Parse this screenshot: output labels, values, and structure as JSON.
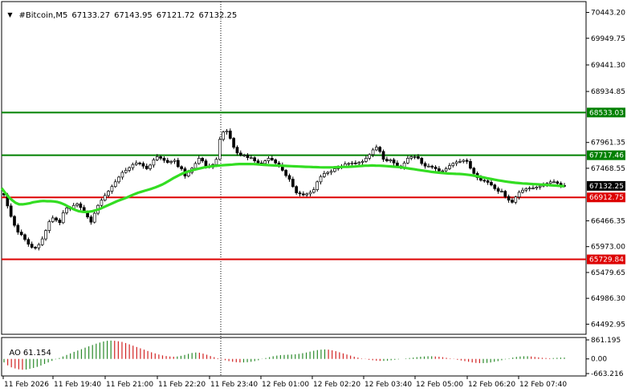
{
  "header": {
    "symbol": "#Bitcoin,M5",
    "open": "67133.27",
    "high": "67143.95",
    "low": "67121.72",
    "close": "67132.25"
  },
  "ao": {
    "name": "AO",
    "value": "61.154"
  },
  "colors": {
    "background": "#ffffff",
    "candles": "#000000",
    "moving_average": "#33dd22",
    "support_resistance_green": "#008000",
    "support_resistance_red": "#dd0000",
    "ao_up": "#2a8a2a",
    "ao_down": "#d22222",
    "current_price_box": "#000000"
  },
  "chart_data": [
    {
      "type": "candlestick",
      "title": "",
      "xlabel": "",
      "ylabel": "",
      "ylim": [
        64300,
        70650
      ],
      "y_ticks": [
        "70443.20",
        "69949.75",
        "69441.30",
        "68934.85",
        "67961.35",
        "67468.55",
        "66466.35",
        "65973.00",
        "65479.65",
        "64986.30",
        "64492.95"
      ],
      "x_ticks": [
        "11 Feb 2026",
        "11 Feb 19:40",
        "11 Feb 21:00",
        "11 Feb 22:20",
        "11 Feb 23:40",
        "12 Feb 01:00",
        "12 Feb 02:20",
        "12 Feb 03:40",
        "12 Feb 05:00",
        "12 Feb 06:20",
        "12 Feb 07:40"
      ],
      "grid": false,
      "horizontal_lines": [
        {
          "value": 68533.03,
          "label": "68533.03",
          "color": "#008000"
        },
        {
          "value": 67717.46,
          "label": "67717.46",
          "color": "#008000"
        },
        {
          "value": 66912.75,
          "label": "66912.75",
          "color": "#dd0000"
        },
        {
          "value": 65729.84,
          "label": "65729.84",
          "color": "#dd0000"
        }
      ],
      "current_price": {
        "value": 67132.25,
        "label": "67132.25"
      },
      "series": [
        {
          "kind": "close",
          "values": [
            66960,
            66750,
            66550,
            66380,
            66250,
            66200,
            66110,
            66020,
            65960,
            65950,
            66010,
            66120,
            66280,
            66450,
            66520,
            66480,
            66430,
            66620,
            66710,
            66700,
            66760,
            66790,
            66720,
            66640,
            66540,
            66440,
            66610,
            66760,
            66860,
            66950,
            67030,
            67120,
            67210,
            67300,
            67390,
            67430,
            67480,
            67540,
            67570,
            67560,
            67510,
            67460,
            67530,
            67630,
            67690,
            67660,
            67620,
            67580,
            67600,
            67620,
            67500,
            67460,
            67320,
            67390,
            67470,
            67560,
            67660,
            67610,
            67510,
            67490,
            67540,
            67640,
            68020,
            68160,
            68180,
            68040,
            67870,
            67760,
            67720,
            67720,
            67670,
            67670,
            67610,
            67570,
            67560,
            67610,
            67660,
            67630,
            67570,
            67530,
            67430,
            67330,
            67260,
            67120,
            67000,
            66980,
            66960,
            66980,
            67010,
            67060,
            67210,
            67310,
            67370,
            67390,
            67410,
            67460,
            67500,
            67510,
            67550,
            67560,
            67570,
            67560,
            67580,
            67600,
            67660,
            67730,
            67820,
            67870,
            67790,
            67640,
            67610,
            67630,
            67570,
            67510,
            67490,
            67570,
            67660,
            67690,
            67690,
            67660,
            67560,
            67510,
            67510,
            67490,
            67460,
            67420,
            67420,
            67460,
            67520,
            67560,
            67590,
            67600,
            67620,
            67600,
            67470,
            67370,
            67290,
            67240,
            67230,
            67200,
            67150,
            67080,
            67030,
            67030,
            66930,
            66860,
            66820,
            66920,
            67010,
            67050,
            67080,
            67090,
            67090,
            67110,
            67130,
            67150,
            67180,
            67210,
            67210,
            67180,
            67140,
            67130
          ]
        },
        {
          "kind": "moving_average",
          "values": [
            67090,
            67000,
            66920,
            66860,
            66810,
            66780,
            66780,
            66790,
            66800,
            66820,
            66830,
            66840,
            66845,
            66840,
            66840,
            66835,
            66825,
            66805,
            66775,
            66740,
            66705,
            66675,
            66650,
            66640,
            66635,
            66640,
            66650,
            66670,
            66690,
            66720,
            66750,
            66780,
            66810,
            66840,
            66865,
            66890,
            66915,
            66945,
            66975,
            67000,
            67020,
            67040,
            67060,
            67080,
            67105,
            67130,
            67160,
            67195,
            67235,
            67275,
            67310,
            67345,
            67375,
            67400,
            67420,
            67440,
            67455,
            67470,
            67485,
            67495,
            67505,
            67515,
            67520,
            67525,
            67530,
            67535,
            67540,
            67545,
            67550,
            67550,
            67550,
            67550,
            67548,
            67545,
            67540,
            67535,
            67530,
            67525,
            67522,
            67520,
            67518,
            67515,
            67512,
            67508,
            67505,
            67502,
            67500,
            67497,
            67495,
            67492,
            67490,
            67487,
            67485,
            67485,
            67485,
            67487,
            67490,
            67492,
            67495,
            67497,
            67500,
            67503,
            67508,
            67513,
            67518,
            67520,
            67522,
            67520,
            67518,
            67515,
            67510,
            67505,
            67500,
            67495,
            67490,
            67480,
            67470,
            67460,
            67450,
            67440,
            67430,
            67420,
            67410,
            67400,
            67392,
            67385,
            67378,
            67372,
            67368,
            67365,
            67362,
            67360,
            67355,
            67348,
            67340,
            67330,
            67318,
            67305,
            67292,
            67278,
            67265,
            67252,
            67240,
            67228,
            67218,
            67208,
            67200,
            67192,
            67186,
            67180,
            67176,
            67172,
            67168,
            67164,
            67160,
            67156,
            67150,
            67145,
            67140,
            67135,
            67130,
            67125
          ]
        }
      ]
    },
    {
      "type": "bar",
      "title": "AO",
      "ylim": [
        -663.216,
        861.195
      ],
      "y_ticks": [
        "861.195",
        "0.00",
        "-663.216"
      ],
      "values": [
        -160,
        -290,
        -380,
        -430,
        -470,
        -490,
        -480,
        -450,
        -410,
        -360,
        -300,
        -230,
        -160,
        -90,
        -20,
        40,
        110,
        180,
        250,
        320,
        380,
        440,
        510,
        570,
        630,
        690,
        740,
        790,
        820,
        830,
        820,
        800,
        770,
        720,
        660,
        600,
        540,
        480,
        420,
        360,
        300,
        250,
        200,
        160,
        130,
        110,
        100,
        110,
        140,
        180,
        230,
        270,
        290,
        280,
        240,
        190,
        130,
        80,
        30,
        -20,
        -60,
        -100,
        -130,
        -150,
        -160,
        -160,
        -150,
        -130,
        -100,
        -60,
        -10,
        40,
        80,
        120,
        150,
        170,
        180,
        190,
        200,
        210,
        230,
        260,
        290,
        330,
        370,
        400,
        420,
        430,
        420,
        390,
        350,
        300,
        250,
        200,
        150,
        100,
        60,
        20,
        -10,
        -40,
        -60,
        -80,
        -90,
        -90,
        -80,
        -60,
        -40,
        -20,
        0,
        20,
        40,
        60,
        80,
        100,
        110,
        120,
        120,
        110,
        100,
        80,
        50,
        20,
        -10,
        -40,
        -70,
        -100,
        -130,
        -160,
        -180,
        -190,
        -190,
        -180,
        -160,
        -130,
        -100,
        -60,
        -20,
        20,
        60,
        90,
        110,
        120,
        120,
        110,
        90,
        70,
        50,
        40,
        30,
        40,
        50,
        60,
        61
      ]
    }
  ]
}
